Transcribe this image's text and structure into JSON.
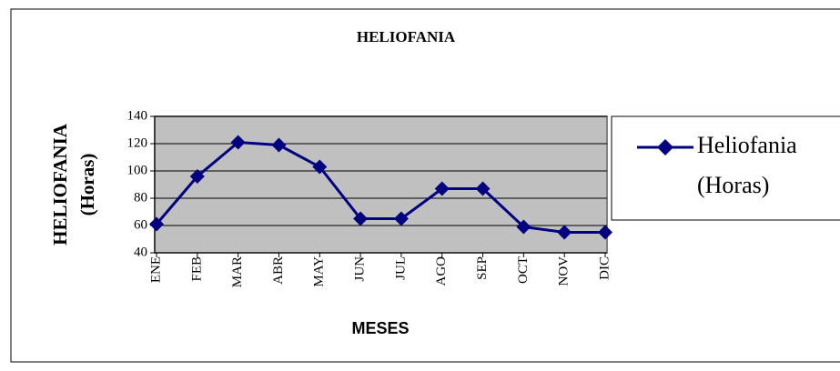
{
  "chart_data": {
    "type": "line",
    "title": "HELIOFANIA",
    "xlabel": "MESES",
    "ylabel": "HELIOFANIA (Horas)",
    "categories": [
      "ENE",
      "FEB",
      "MAR",
      "ABR",
      "MAY",
      "JUN",
      "JUL",
      "AGO",
      "SEP",
      "OCT",
      "NOV",
      "DIC"
    ],
    "series": [
      {
        "name": "Heliofania (Horas)",
        "color": "#000080",
        "values": [
          61,
          96,
          121,
          119,
          103,
          65,
          65,
          87,
          87,
          59,
          55,
          55
        ]
      }
    ],
    "ylim": [
      40,
      140
    ],
    "yticks": [
      40,
      60,
      80,
      100,
      120,
      140
    ],
    "grid": true,
    "plot_background": "#c0c0c0",
    "legend": "right"
  }
}
